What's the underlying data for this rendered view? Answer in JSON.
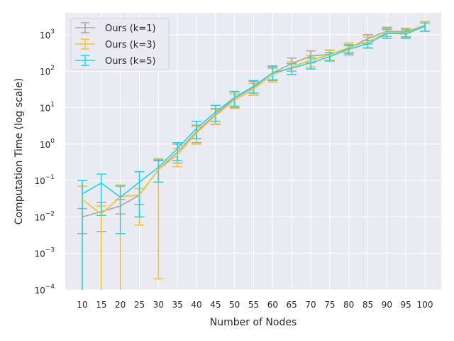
{
  "chart_data": {
    "type": "line",
    "title": "",
    "xlabel": "Number of Nodes",
    "ylabel": "Computation Time (log scale)",
    "yscale": "log",
    "ylim": [
      0.0001,
      4000
    ],
    "y_ticks": [
      {
        "value": 0.0001,
        "base": "10",
        "exp": "−4"
      },
      {
        "value": 0.001,
        "base": "10",
        "exp": "−3"
      },
      {
        "value": 0.01,
        "base": "10",
        "exp": "−2"
      },
      {
        "value": 0.1,
        "base": "10",
        "exp": "−1"
      },
      {
        "value": 1,
        "base": "10",
        "exp": "0"
      },
      {
        "value": 10,
        "base": "10",
        "exp": "1"
      },
      {
        "value": 100,
        "base": "10",
        "exp": "2"
      },
      {
        "value": 1000,
        "base": "10",
        "exp": "3"
      }
    ],
    "x": [
      "10",
      "15",
      "20",
      "25",
      "30",
      "35",
      "40",
      "45",
      "50",
      "55",
      "60",
      "65",
      "70",
      "75",
      "80",
      "85",
      "90",
      "95",
      "100"
    ],
    "grid": true,
    "legend_position": "top-left",
    "series": [
      {
        "name": "Ours (k=1)",
        "color": "#a6a6a6",
        "values": [
          0.01,
          0.014,
          0.02,
          0.04,
          0.2,
          0.6,
          2.2,
          6.5,
          18,
          36,
          90,
          160,
          260,
          290,
          420,
          780,
          1250,
          1200,
          1800
        ],
        "lower": [
          0.0035,
          0.004,
          0.012,
          0.022,
          0.09,
          0.3,
          1.1,
          3.5,
          10,
          22,
          55,
          100,
          170,
          200,
          310,
          560,
          900,
          880,
          1250
        ],
        "upper": [
          0.017,
          0.025,
          0.03,
          0.06,
          0.35,
          1.0,
          3.3,
          9.5,
          28,
          52,
          140,
          230,
          360,
          380,
          540,
          1000,
          1600,
          1500,
          2300
        ]
      },
      {
        "name": "Ours (k=3)",
        "color": "#fcc01f",
        "values": [
          0.03,
          0.012,
          0.036,
          0.04,
          0.2,
          0.5,
          2.0,
          6.0,
          16,
          32,
          80,
          130,
          200,
          280,
          450,
          640,
          1150,
          1130,
          1750
        ],
        "lower": [
          1e-05,
          1e-05,
          1e-05,
          0.006,
          0.0002,
          0.24,
          1.0,
          3.4,
          9.5,
          22,
          50,
          80,
          130,
          200,
          330,
          440,
          800,
          820,
          1250
        ],
        "upper": [
          0.07,
          0.02,
          0.075,
          0.06,
          0.4,
          0.75,
          3.0,
          9.0,
          24,
          46,
          120,
          180,
          270,
          370,
          600,
          870,
          1500,
          1450,
          2300
        ]
      },
      {
        "name": "Ours (k=5)",
        "color": "#15d7f0",
        "values": [
          0.043,
          0.085,
          0.035,
          0.09,
          0.23,
          0.75,
          2.7,
          7.5,
          19,
          38,
          90,
          120,
          170,
          250,
          400,
          560,
          1100,
          1050,
          1700
        ],
        "lower": [
          1e-05,
          0.011,
          0.0035,
          0.01,
          0.09,
          0.35,
          1.4,
          4.2,
          11,
          25,
          58,
          80,
          115,
          190,
          280,
          430,
          800,
          800,
          1250
        ],
        "upper": [
          0.1,
          0.15,
          0.07,
          0.175,
          0.37,
          1.1,
          4.2,
          11.5,
          27,
          55,
          130,
          160,
          230,
          320,
          510,
          700,
          1400,
          1350,
          2100
        ]
      }
    ]
  }
}
